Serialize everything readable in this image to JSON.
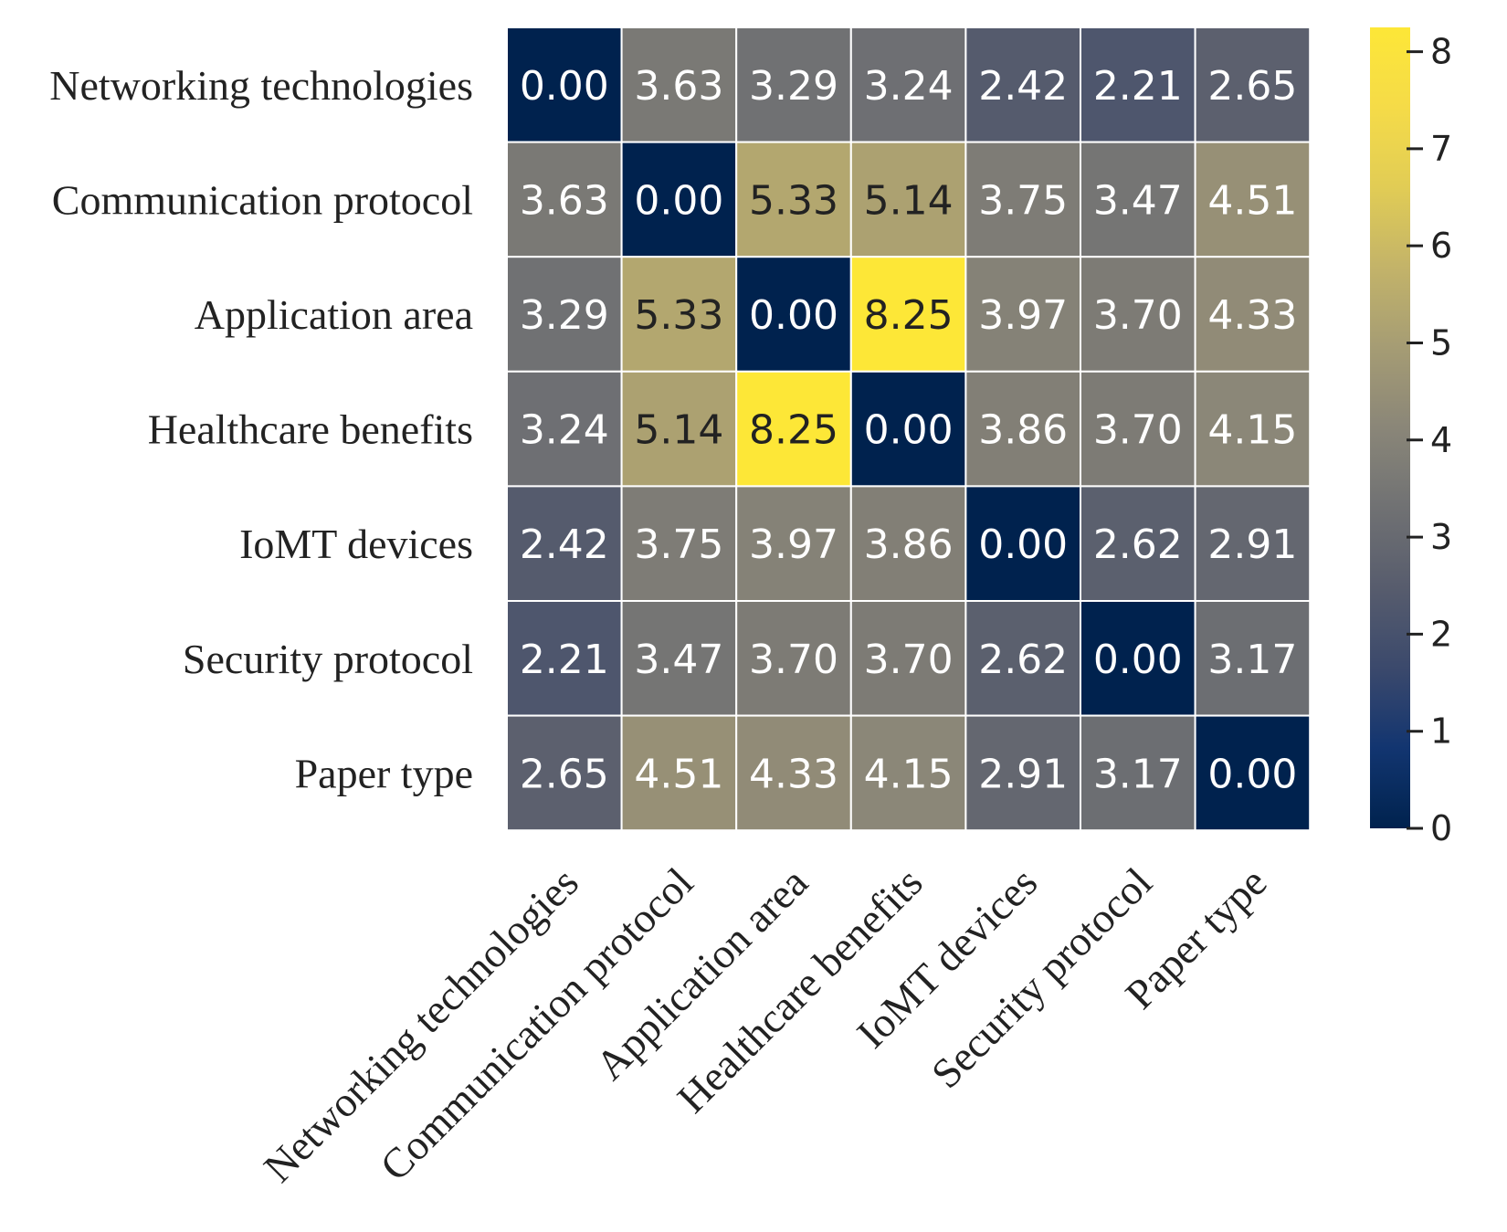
{
  "chart_data": {
    "type": "heatmap",
    "title": "",
    "xlabel": "",
    "ylabel": "",
    "rows": [
      "Networking technologies",
      "Communication protocol",
      "Application area",
      "Healthcare benefits",
      "IoMT devices",
      "Security protocol",
      "Paper type"
    ],
    "columns": [
      "Networking technologies",
      "Communication protocol",
      "Application area",
      "Healthcare benefits",
      "IoMT devices",
      "Security protocol",
      "Paper type"
    ],
    "values": [
      [
        0.0,
        3.63,
        3.29,
        3.24,
        2.42,
        2.21,
        2.65
      ],
      [
        3.63,
        0.0,
        5.33,
        5.14,
        3.75,
        3.47,
        4.51
      ],
      [
        3.29,
        5.33,
        0.0,
        8.25,
        3.97,
        3.7,
        4.33
      ],
      [
        3.24,
        5.14,
        8.25,
        0.0,
        3.86,
        3.7,
        4.15
      ],
      [
        2.42,
        3.75,
        3.97,
        3.86,
        0.0,
        2.62,
        2.91
      ],
      [
        2.21,
        3.47,
        3.7,
        3.7,
        2.62,
        0.0,
        3.17
      ],
      [
        2.65,
        4.51,
        4.33,
        4.15,
        2.91,
        3.17,
        0.0
      ]
    ],
    "value_format": "0.00",
    "colormap": "cividis",
    "color_range": [
      0,
      8.25
    ],
    "colorbar": {
      "ticks": [
        0,
        1,
        2,
        3,
        4,
        5,
        6,
        7,
        8
      ],
      "placement": "right"
    },
    "grid": false,
    "legend": "none"
  },
  "colors": {
    "low": "#00224e",
    "high": "#fde737",
    "cell_border": "#ffffff",
    "light_text": "#ffffff",
    "dark_text": "#222222"
  }
}
